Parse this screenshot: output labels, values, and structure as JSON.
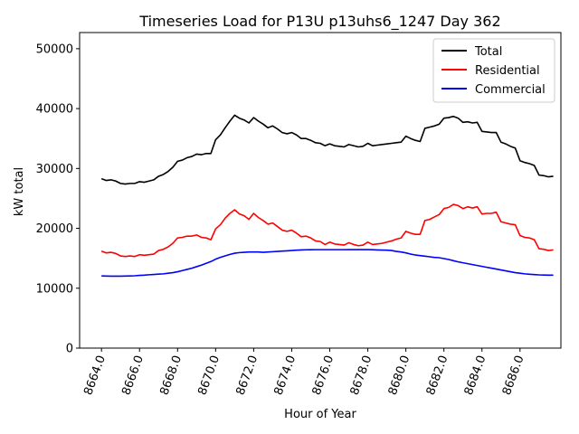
{
  "chart_data": {
    "type": "line",
    "title": "Timeseries Load for P13U p13uhs6_1247  Day 362",
    "xlabel": "Hour of Year",
    "ylabel": "kW total",
    "xlim": [
      8662.85,
      8688.15
    ],
    "ylim": [
      0,
      52700
    ],
    "xticks": [
      8664,
      8666,
      8668,
      8670,
      8672,
      8674,
      8676,
      8678,
      8680,
      8682,
      8684,
      8686
    ],
    "xtick_labels": [
      "8664.0",
      "8666.0",
      "8668.0",
      "8670.0",
      "8672.0",
      "8674.0",
      "8676.0",
      "8678.0",
      "8680.0",
      "8682.0",
      "8684.0",
      "8686.0"
    ],
    "yticks": [
      0,
      10000,
      20000,
      30000,
      40000,
      50000
    ],
    "ytick_labels": [
      "0",
      "10000",
      "20000",
      "30000",
      "40000",
      "50000"
    ],
    "legend_position": "top-right",
    "x": [
      8664.0,
      8664.25,
      8664.5,
      8664.75,
      8665.0,
      8665.25,
      8665.5,
      8665.75,
      8666.0,
      8666.25,
      8666.5,
      8666.75,
      8667.0,
      8667.25,
      8667.5,
      8667.75,
      8668.0,
      8668.25,
      8668.5,
      8668.75,
      8669.0,
      8669.25,
      8669.5,
      8669.75,
      8670.0,
      8670.25,
      8670.5,
      8670.75,
      8671.0,
      8671.25,
      8671.5,
      8671.75,
      8672.0,
      8672.25,
      8672.5,
      8672.75,
      8673.0,
      8673.25,
      8673.5,
      8673.75,
      8674.0,
      8674.25,
      8674.5,
      8674.75,
      8675.0,
      8675.25,
      8675.5,
      8675.75,
      8676.0,
      8676.25,
      8676.5,
      8676.75,
      8677.0,
      8677.25,
      8677.5,
      8677.75,
      8678.0,
      8678.25,
      8678.5,
      8678.75,
      8679.0,
      8679.25,
      8679.5,
      8679.75,
      8680.0,
      8680.25,
      8680.5,
      8680.75,
      8681.0,
      8681.25,
      8681.5,
      8681.75,
      8682.0,
      8682.25,
      8682.5,
      8682.75,
      8683.0,
      8683.25,
      8683.5,
      8683.75,
      8684.0,
      8684.25,
      8684.5,
      8684.75,
      8685.0,
      8685.25,
      8685.5,
      8685.75,
      8686.0,
      8686.25,
      8686.5,
      8686.75,
      8687.0,
      8687.25,
      8687.5,
      8687.75
    ],
    "series": [
      {
        "name": "Total",
        "color": "#000000",
        "values": [
          28300,
          28000,
          28100,
          27900,
          27500,
          27400,
          27500,
          27500,
          27800,
          27700,
          27900,
          28100,
          28700,
          29000,
          29500,
          30200,
          31200,
          31400,
          31800,
          32000,
          32400,
          32300,
          32500,
          32500,
          34800,
          35600,
          36800,
          37900,
          38900,
          38400,
          38100,
          37600,
          38500,
          37900,
          37400,
          36800,
          37100,
          36600,
          36000,
          35800,
          36000,
          35600,
          35000,
          35000,
          34700,
          34300,
          34200,
          33800,
          34100,
          33800,
          33700,
          33600,
          34000,
          33800,
          33600,
          33700,
          34200,
          33800,
          33900,
          34000,
          34100,
          34200,
          34300,
          34400,
          35400,
          35000,
          34700,
          34500,
          36700,
          36900,
          37100,
          37400,
          38400,
          38500,
          38700,
          38400,
          37700,
          37800,
          37600,
          37700,
          36200,
          36100,
          36000,
          36000,
          34400,
          34100,
          33700,
          33400,
          31300,
          31000,
          30800,
          30500,
          28900,
          28800,
          28600,
          28700
        ]
      },
      {
        "name": "Residential",
        "color": "#ff0000",
        "values": [
          16200,
          15900,
          16000,
          15800,
          15400,
          15300,
          15400,
          15300,
          15600,
          15500,
          15600,
          15700,
          16300,
          16500,
          16900,
          17500,
          18400,
          18500,
          18700,
          18700,
          18900,
          18500,
          18400,
          18100,
          19900,
          20600,
          21700,
          22500,
          23100,
          22400,
          22100,
          21500,
          22500,
          21800,
          21300,
          20700,
          20900,
          20300,
          19700,
          19500,
          19700,
          19200,
          18600,
          18700,
          18400,
          17900,
          17800,
          17300,
          17700,
          17400,
          17300,
          17200,
          17600,
          17300,
          17100,
          17200,
          17700,
          17300,
          17400,
          17500,
          17700,
          17900,
          18200,
          18400,
          19500,
          19200,
          19000,
          19000,
          21300,
          21500,
          21900,
          22300,
          23300,
          23500,
          24000,
          23800,
          23300,
          23600,
          23400,
          23600,
          22400,
          22500,
          22500,
          22700,
          21100,
          20900,
          20700,
          20600,
          18800,
          18500,
          18400,
          18100,
          16600,
          16500,
          16300,
          16400
        ]
      },
      {
        "name": "Commercial",
        "color": "#0000ff",
        "values": [
          12050,
          12030,
          12020,
          12010,
          12020,
          12030,
          12050,
          12080,
          12150,
          12180,
          12250,
          12300,
          12350,
          12400,
          12500,
          12600,
          12750,
          12950,
          13150,
          13350,
          13600,
          13850,
          14150,
          14450,
          14850,
          15150,
          15400,
          15650,
          15850,
          15950,
          16000,
          16050,
          16050,
          16050,
          16000,
          16050,
          16100,
          16150,
          16200,
          16250,
          16300,
          16350,
          16400,
          16420,
          16430,
          16440,
          16440,
          16440,
          16440,
          16440,
          16440,
          16440,
          16450,
          16450,
          16450,
          16450,
          16450,
          16430,
          16400,
          16380,
          16350,
          16300,
          16150,
          16050,
          15900,
          15700,
          15550,
          15450,
          15350,
          15250,
          15150,
          15100,
          14950,
          14800,
          14600,
          14400,
          14250,
          14100,
          13950,
          13800,
          13650,
          13500,
          13350,
          13200,
          13050,
          12900,
          12750,
          12600,
          12500,
          12400,
          12330,
          12280,
          12230,
          12200,
          12180,
          12180
        ]
      }
    ]
  }
}
